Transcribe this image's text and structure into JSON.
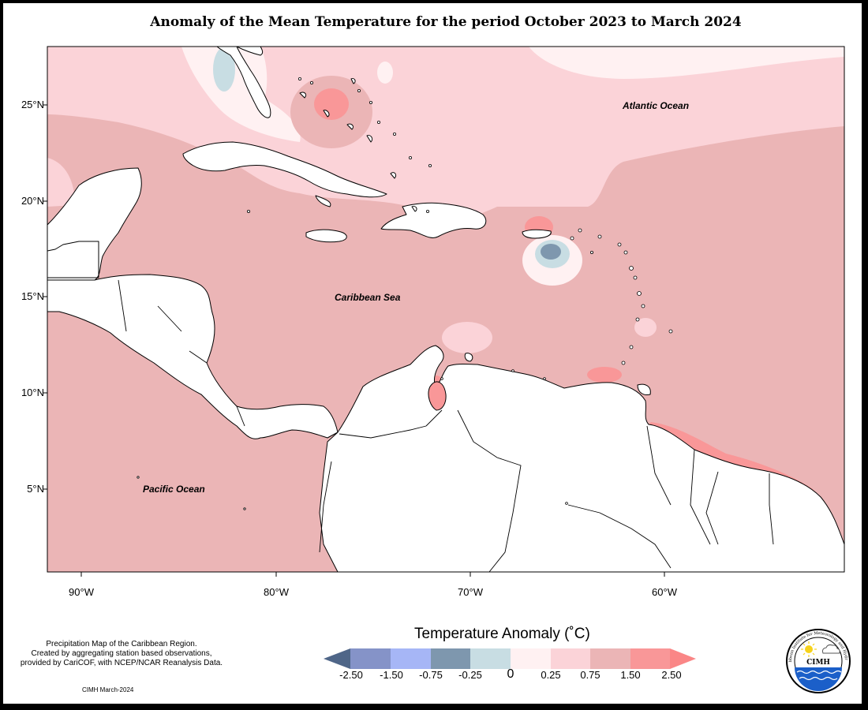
{
  "title": "Anomaly of the Mean Temperature for the period October 2023 to March 2024",
  "map": {
    "lat_ticks": [
      "25°N",
      "20°N",
      "15°N",
      "10°N",
      "5°N"
    ],
    "lon_ticks": [
      "90°W",
      "80°W",
      "70°W",
      "60°W"
    ],
    "regions": [
      {
        "name": "Atlantic Ocean"
      },
      {
        "name": "Caribbean Sea"
      },
      {
        "name": "Pacific Ocean"
      }
    ]
  },
  "legend": {
    "title": "Temperature Anomaly (˚C)",
    "ticks": [
      "-2.50",
      "-1.50",
      "-0.75",
      "-0.25",
      "0",
      "0.25",
      "0.75",
      "1.50",
      "2.50"
    ],
    "colors": [
      "#4f6688",
      "#8593c8",
      "#a6b6f6",
      "#7e97ae",
      "#c8dde3",
      "#fff1f2",
      "#fbd3d8",
      "#ebb5b6",
      "#f99798",
      "#fa8686"
    ]
  },
  "credits": {
    "lines": [
      "Precipitation Map of the Caribbean Region.",
      "Created by aggregating station based observations,",
      "provided by CariCOF, with NCEP/NCAR Reanalysis Data."
    ],
    "stamp": "CIMH March-2024"
  },
  "logo": {
    "label": "CIMH",
    "ring_text": "Caribbean Institute for Meteorology and Hydrology"
  }
}
